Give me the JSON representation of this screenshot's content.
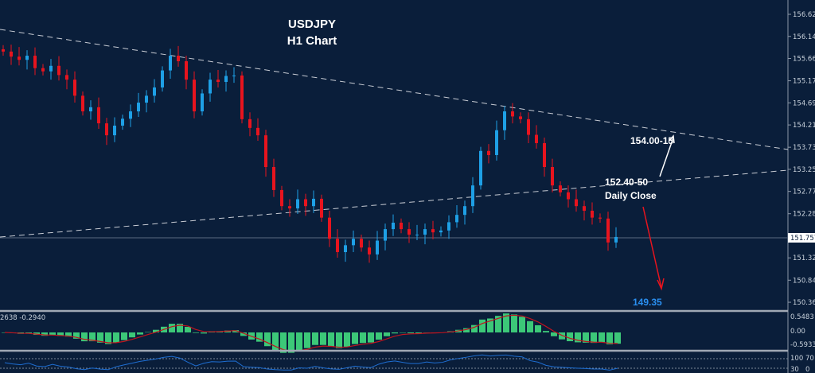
{
  "chart_data": {
    "type": "candlestick",
    "title": "USDJPY",
    "subtitle": "H1 Chart",
    "symbol": "USDJPY",
    "timeframe": "H1",
    "ylim": [
      150.1,
      156.85
    ],
    "yticks": [
      "156.620",
      "156.140",
      "155.660",
      "155.175",
      "154.695",
      "154.215",
      "153.730",
      "153.250",
      "152.770",
      "152.285",
      "151.325",
      "150.840",
      "150.360"
    ],
    "current_price": "151.757",
    "closes": [
      155.81,
      155.7,
      155.63,
      155.72,
      155.45,
      155.38,
      155.5,
      155.3,
      155.2,
      154.85,
      154.51,
      154.6,
      154.25,
      153.99,
      154.2,
      154.35,
      154.51,
      154.7,
      154.85,
      155.03,
      155.4,
      155.72,
      155.6,
      155.2,
      154.51,
      154.9,
      155.2,
      155.15,
      155.28,
      155.29,
      154.34,
      154.15,
      153.99,
      153.3,
      152.8,
      152.45,
      152.4,
      152.6,
      152.45,
      152.61,
      152.2,
      151.74,
      151.45,
      151.6,
      151.74,
      151.55,
      151.4,
      151.7,
      151.95,
      152.09,
      151.95,
      151.83,
      151.83,
      151.95,
      151.88,
      151.92,
      152.1,
      152.26,
      152.45,
      152.9,
      153.65,
      153.56,
      154.1,
      154.51,
      154.4,
      154.34,
      154.0,
      153.82,
      153.3,
      152.9,
      152.75,
      152.6,
      152.45,
      152.35,
      152.2,
      152.18,
      151.66,
      151.78
    ],
    "annotations": {
      "target_up": "154.00-15",
      "pivot": "152.40-50",
      "pivot_note": "Daily Close",
      "target_down": "149.35"
    },
    "macd": {
      "label": "2638 -0.2940",
      "yticks": [
        "0.5483",
        "0.00",
        "-0.5933"
      ]
    },
    "rsi": {
      "yticks": [
        "100",
        "70",
        "30",
        "0"
      ]
    },
    "colors": {
      "background": "#0a1e3a",
      "bull": "#1ea0e6",
      "bear": "#e8141e",
      "trendline": "#c8ccd4",
      "macd_hist": "#3cc878",
      "macd_signal": "#c0141e",
      "rsi_line": "#1e6ed2",
      "target_down": "#2a8ff0"
    }
  }
}
